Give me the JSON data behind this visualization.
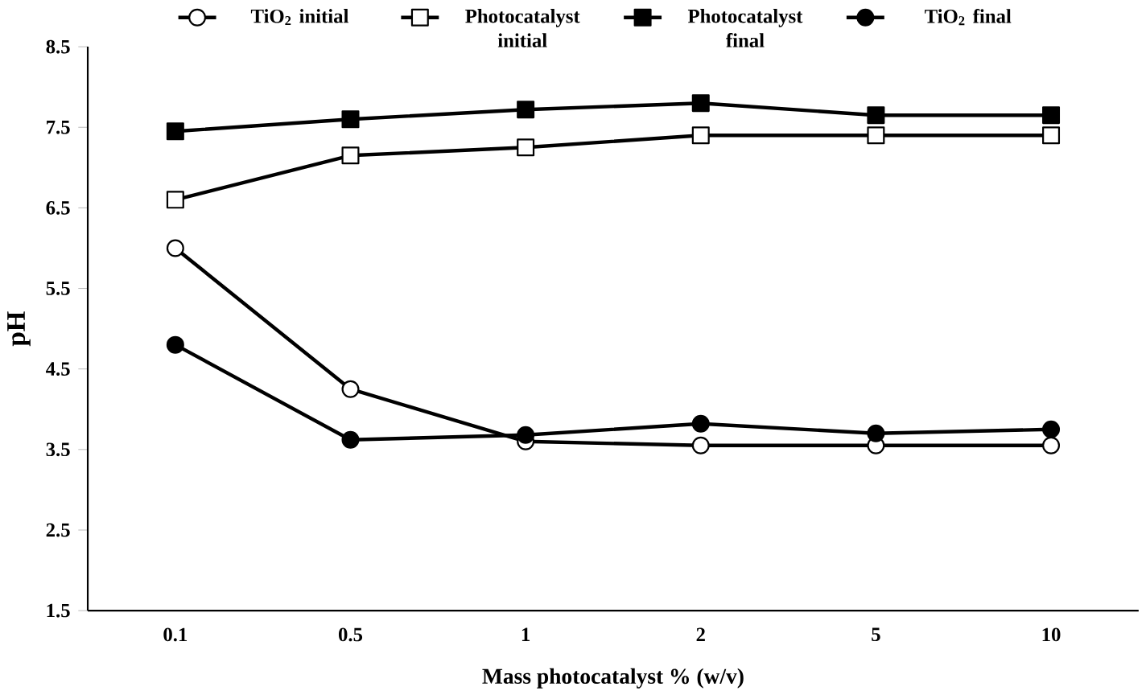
{
  "chart_data": {
    "type": "line",
    "xlabel": "Mass photocatalyst % (w/v)",
    "ylabel": "pH",
    "categories": [
      "0.1",
      "0.5",
      "1",
      "2",
      "5",
      "10"
    ],
    "ylim": [
      1.5,
      8.5
    ],
    "yticks": [
      1.5,
      2.5,
      3.5,
      4.5,
      5.5,
      6.5,
      7.5,
      8.5
    ],
    "legend": "top",
    "grid": false,
    "line_style": "solid",
    "series": [
      {
        "name": "TiO$_{2}$ initial",
        "color": "#ffffff",
        "marker": "circle",
        "values": [
          6.0,
          4.25,
          3.6,
          3.55,
          3.55,
          3.55
        ]
      },
      {
        "name": "Photocatalyst initial",
        "color": "#ffffff",
        "marker": "square",
        "values": [
          6.6,
          7.15,
          7.25,
          7.4,
          7.4,
          7.4
        ]
      },
      {
        "name": "Photocatalyst final",
        "color": "#000000",
        "marker": "square",
        "values": [
          7.45,
          7.6,
          7.72,
          7.8,
          7.65,
          7.65
        ]
      },
      {
        "name": "TiO$_{2}$ final",
        "color": "#000000",
        "marker": "circle",
        "values": [
          4.8,
          3.62,
          3.68,
          3.82,
          3.7,
          3.75
        ]
      }
    ]
  }
}
